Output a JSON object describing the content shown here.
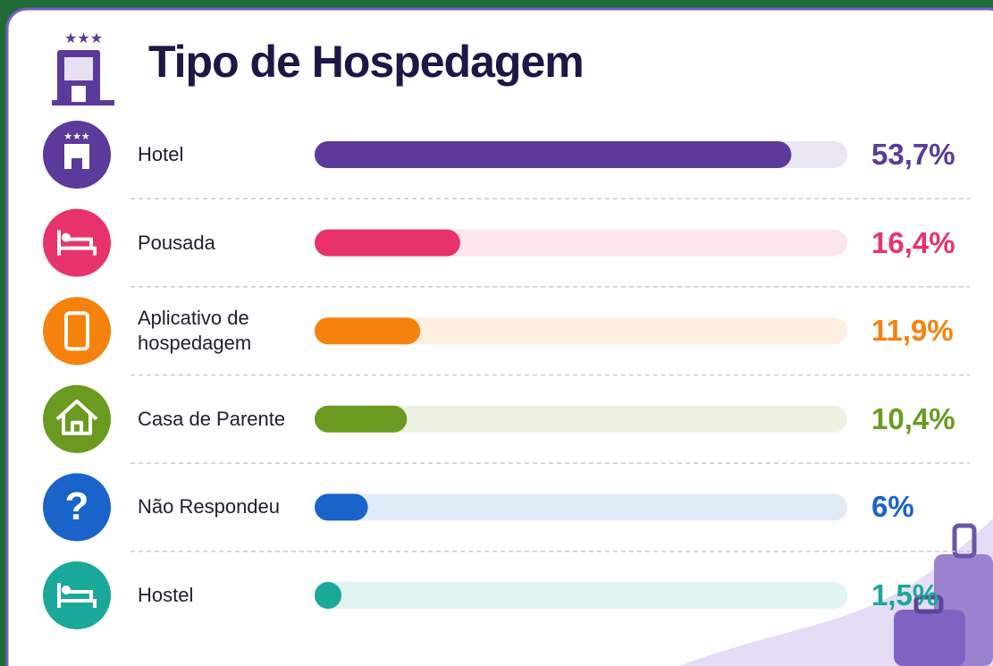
{
  "chart_data": {
    "type": "bar",
    "title": "Tipo de Hospedagem",
    "categories": [
      "Hotel",
      "Pousada",
      "Aplicativo de hospedagem",
      "Casa de Parente",
      "Não Respondeu",
      "Hostel"
    ],
    "values": [
      53.7,
      16.4,
      11.9,
      10.4,
      6,
      1.5
    ],
    "value_labels": [
      "53,7%",
      "16,4%",
      "11,9%",
      "10,4%",
      "6%",
      "1,5%"
    ],
    "colors": [
      "#5b3a9b",
      "#e8336a",
      "#f5820d",
      "#6a9a1f",
      "#1a63c9",
      "#1aa89a"
    ],
    "xlim": [
      0,
      60
    ]
  }
}
